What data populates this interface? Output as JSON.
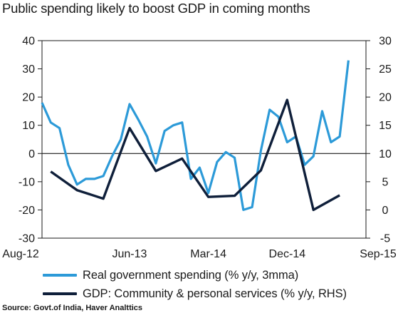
{
  "chart_data": {
    "type": "line",
    "title": "Public spending likely to boost GDP in coming months",
    "source": "Source: Govt.of India, Haver Analttics",
    "x_tick_labels": [
      "Aug-12",
      "Jun-13",
      "Mar-14",
      "Dec-14",
      "Sep-15"
    ],
    "y_left": {
      "ticks": [
        "40",
        "30",
        "20",
        "10",
        "0",
        "-10",
        "-20",
        "-30"
      ],
      "ylim": [
        -30,
        40
      ]
    },
    "y_right": {
      "ticks": [
        "30",
        "25",
        "20",
        "15",
        "10",
        "5",
        "0",
        "-5"
      ],
      "ylim": [
        -5,
        30
      ]
    },
    "legend_placement": "bottom",
    "series": [
      {
        "name": "Real government spending (% y/y, 3mma)",
        "axis": "left",
        "color": "#2c9ad8",
        "points": [
          [
            "2012-08",
            18
          ],
          [
            "2012-09",
            11
          ],
          [
            "2012-10",
            9
          ],
          [
            "2012-11",
            -4
          ],
          [
            "2012-12",
            -11
          ],
          [
            "2013-01",
            -9
          ],
          [
            "2013-02",
            -9
          ],
          [
            "2013-03",
            -8
          ],
          [
            "2013-04",
            -1
          ],
          [
            "2013-05",
            5
          ],
          [
            "2013-06",
            17.5
          ],
          [
            "2013-07",
            12
          ],
          [
            "2013-08",
            6
          ],
          [
            "2013-09",
            -3.5
          ],
          [
            "2013-10",
            8
          ],
          [
            "2013-11",
            10
          ],
          [
            "2013-12",
            11
          ],
          [
            "2014-01",
            -9
          ],
          [
            "2014-02",
            -5
          ],
          [
            "2014-03",
            -14
          ],
          [
            "2014-04",
            -3
          ],
          [
            "2014-05",
            0.5
          ],
          [
            "2014-06",
            -1.5
          ],
          [
            "2014-07",
            -20
          ],
          [
            "2014-08",
            -19
          ],
          [
            "2014-09",
            1
          ],
          [
            "2014-10",
            15.5
          ],
          [
            "2014-11",
            13
          ],
          [
            "2014-12",
            4
          ],
          [
            "2015-01",
            6
          ],
          [
            "2015-02",
            -4
          ],
          [
            "2015-03",
            -1
          ],
          [
            "2015-04",
            15
          ],
          [
            "2015-05",
            4
          ],
          [
            "2015-06",
            6
          ],
          [
            "2015-07",
            33
          ]
        ]
      },
      {
        "name": "GDP: Community & personal services (% y/y, RHS)",
        "axis": "right",
        "color": "#0f1f3a",
        "points": [
          [
            "2012-09",
            6.8
          ],
          [
            "2012-12",
            3.5
          ],
          [
            "2013-03",
            2
          ],
          [
            "2013-06",
            14.5
          ],
          [
            "2013-09",
            6.9
          ],
          [
            "2013-12",
            9.1
          ],
          [
            "2014-03",
            2.3
          ],
          [
            "2014-06",
            2.5
          ],
          [
            "2014-09",
            7
          ],
          [
            "2014-12",
            19.5
          ],
          [
            "2015-03",
            0
          ],
          [
            "2015-06",
            2.6
          ]
        ]
      }
    ]
  }
}
